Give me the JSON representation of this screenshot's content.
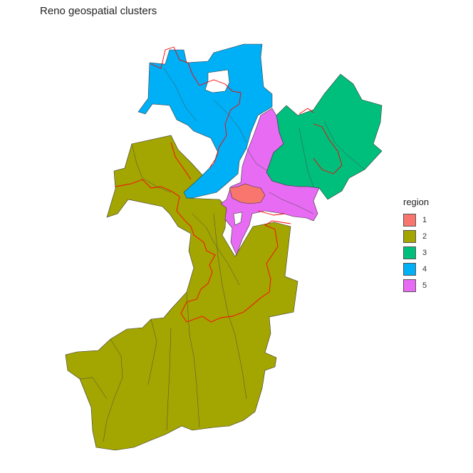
{
  "title": "Reno geospatial clusters",
  "legend": {
    "title": "region",
    "items": [
      {
        "label": "1",
        "color": "#F8766D"
      },
      {
        "label": "2",
        "color": "#A3A500"
      },
      {
        "label": "3",
        "color": "#00BF7D"
      },
      {
        "label": "4",
        "color": "#00B0F6"
      },
      {
        "label": "5",
        "color": "#E76BF3"
      }
    ]
  },
  "boundary_color": "#ff0000"
}
